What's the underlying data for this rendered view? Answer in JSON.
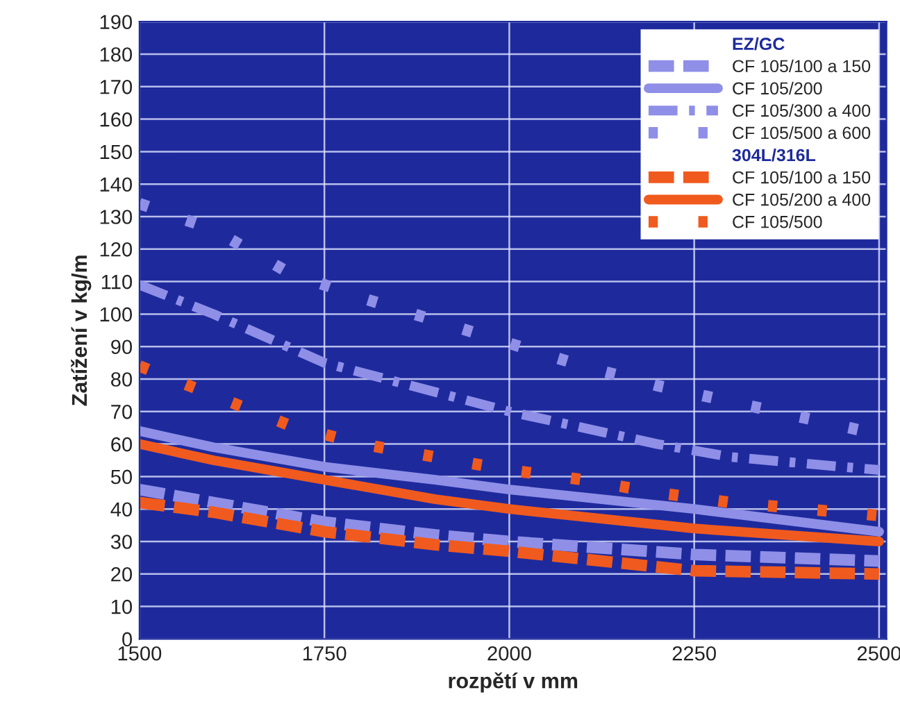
{
  "chart_data": {
    "type": "line",
    "xlabel": "rozpětí v mm",
    "ylabel": "Zatížení v kg/m",
    "xlim": [
      1500,
      2510
    ],
    "xticks": [
      1500,
      1750,
      2000,
      2250,
      2500
    ],
    "ylim": [
      0,
      190
    ],
    "yticks": [
      0,
      10,
      20,
      30,
      40,
      50,
      60,
      70,
      80,
      90,
      100,
      110,
      120,
      130,
      140,
      150,
      160,
      170,
      180,
      190
    ],
    "grid": true,
    "legend": "top right",
    "annotations": [
      "EZ/GC",
      "304L/316L"
    ],
    "series": [
      {
        "name": "CF 105/100 a 150",
        "color": "#8f8fe8",
        "line_style": "dashed",
        "x": [
          1500,
          1600,
          1750,
          1900,
          2000,
          2250,
          2500
        ],
        "values": [
          46,
          42,
          36,
          32,
          30,
          26,
          24
        ]
      },
      {
        "name": "CF 105/200",
        "color": "#8f8fe8",
        "line_style": "solid",
        "x": [
          1500,
          1600,
          1750,
          1900,
          2000,
          2250,
          2500
        ],
        "values": [
          64,
          59,
          53,
          49,
          46,
          40,
          33
        ]
      },
      {
        "name": "CF 105/300 a 400",
        "color": "#8f8fe8",
        "line_style": "dashdot",
        "x": [
          1500,
          1600,
          1700,
          1750,
          1800,
          1900,
          2000,
          2100,
          2200,
          2300,
          2400,
          2500
        ],
        "values": [
          109,
          100,
          90,
          85,
          82,
          76,
          70,
          65,
          60,
          56,
          54,
          52
        ]
      },
      {
        "name": "CF 105/500 a 600",
        "color": "#8f8fe8",
        "line_style": "dotted",
        "x": [
          1500,
          1600,
          1700,
          1800,
          1900,
          2000,
          2100,
          2200,
          2300,
          2400,
          2500
        ],
        "values": [
          134,
          126,
          113,
          105,
          98,
          91,
          84,
          78,
          73,
          68,
          63
        ]
      },
      {
        "name": "CF 105/100 a 150",
        "color": "#f05a1e",
        "line_style": "dashed",
        "x": [
          1500,
          1600,
          1750,
          1900,
          2000,
          2250,
          2500
        ],
        "values": [
          42,
          39,
          33,
          29,
          27,
          21,
          20
        ]
      },
      {
        "name": "CF 105/200 a 400",
        "color": "#f05a1e",
        "line_style": "solid",
        "x": [
          1500,
          1600,
          1750,
          1900,
          2000,
          2250,
          2500
        ],
        "values": [
          60,
          55,
          49,
          43,
          40,
          34,
          30
        ]
      },
      {
        "name": "CF 105/500",
        "color": "#f05a1e",
        "line_style": "dotted",
        "x": [
          1500,
          1600,
          1700,
          1800,
          1900,
          2000,
          2100,
          2200,
          2300,
          2400,
          2500
        ],
        "values": [
          84,
          75,
          66,
          60,
          56,
          52,
          49,
          45,
          42,
          40,
          38
        ]
      }
    ]
  }
}
